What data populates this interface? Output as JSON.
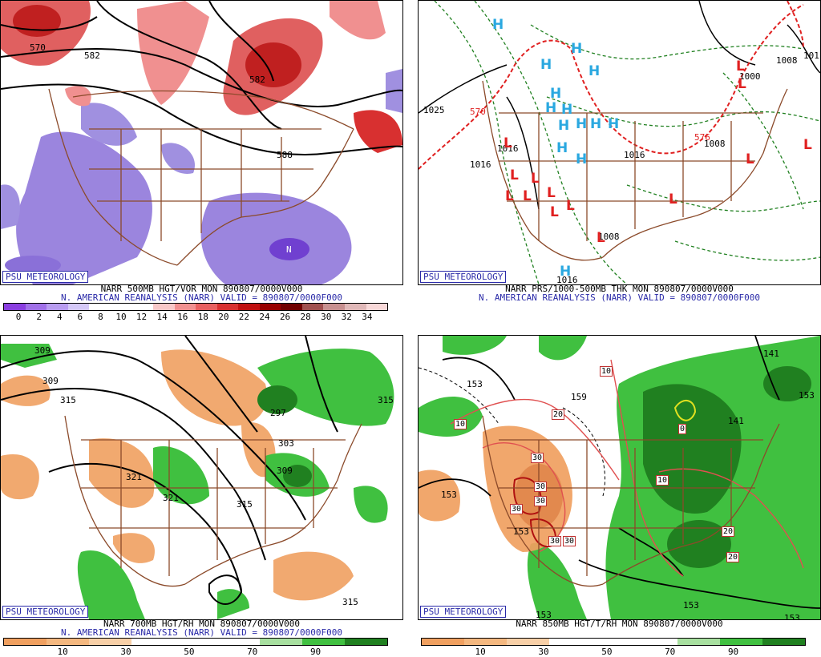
{
  "panels": [
    {
      "id": "vor500",
      "badge": "PSU METEOROLOGY",
      "title1": "NARR 500MB HGT/VOR MON 890807/0000V000",
      "title2": "N. AMERICAN REANALYSIS (NARR) VALID = 890807/0000F000",
      "colorbar": {
        "colors": [
          "#8a3ee0",
          "#a070e8",
          "#b89cf0",
          "#d4c8f8",
          "#ffffff",
          "#ffffff",
          "#ffffff",
          "#f8c8c8",
          "#f09090",
          "#e86060",
          "#d83030",
          "#c01010",
          "#980000",
          "#700000",
          "#a05050",
          "#c89090",
          "#e0b8b8",
          "#f8d8d8"
        ],
        "ticks": [
          "0",
          "2",
          "4",
          "6",
          "8",
          "10",
          "12",
          "14",
          "16",
          "18",
          "20",
          "22",
          "24",
          "26",
          "28",
          "30",
          "32",
          "34"
        ]
      },
      "contour_labels": [
        "570",
        "582",
        "582",
        "588"
      ]
    },
    {
      "id": "prs",
      "badge": "PSU METEOROLOGY",
      "title1": "NARR PRS/1000-500MB THK MON 890807/0000V000",
      "title2": "N. AMERICAN REANALYSIS (NARR) VALID = 890807/0000F000",
      "highs": [
        "H",
        "H",
        "H",
        "H",
        "H",
        "H",
        "H",
        "H",
        "H",
        "H",
        "H",
        "H",
        "H",
        "H"
      ],
      "lows": [
        "L",
        "L",
        "L",
        "L",
        "L",
        "L",
        "L",
        "L",
        "L",
        "L",
        "L",
        "L",
        "L",
        "L"
      ],
      "contour_labels": [
        "1025",
        "570",
        "1016",
        "1016",
        "1016",
        "1008",
        "1008",
        "1016",
        "1008",
        "1000",
        "1008",
        "1016",
        "101",
        "576"
      ]
    },
    {
      "id": "rh700",
      "badge": "PSU METEOROLOGY",
      "title1": "NARR 700MB HGT/RH MON 890807/0000V000",
      "title2": "N. AMERICAN REANALYSIS (NARR) VALID = 890807/0000F000",
      "colorbar": {
        "colors": [
          "#f0a060",
          "#f4b880",
          "#f8d0a8",
          "#ffffff",
          "#ffffff",
          "#ffffff",
          "#a8e0a0",
          "#40c040",
          "#208020"
        ],
        "ticks": [
          "10",
          "30",
          "50",
          "70",
          "90"
        ]
      },
      "contour_labels": [
        "309",
        "309",
        "315",
        "321",
        "321",
        "315",
        "297",
        "303",
        "309",
        "315",
        "315"
      ]
    },
    {
      "id": "t850",
      "badge": "PSU METEOROLOGY",
      "title1": "NARR 850MB HGT/T/RH MON 890807/0000V000",
      "colorbar": {
        "colors": [
          "#f0a060",
          "#f4b880",
          "#f8d0a8",
          "#ffffff",
          "#ffffff",
          "#ffffff",
          "#a8e0a0",
          "#40c040",
          "#208020"
        ],
        "ticks": [
          "10",
          "30",
          "50",
          "70",
          "90"
        ]
      },
      "contour_labels": [
        "153",
        "153",
        "153",
        "153",
        "153",
        "141",
        "141",
        "159",
        "153",
        "153"
      ],
      "temp_labels": [
        "10",
        "10",
        "20",
        "10",
        "30",
        "30",
        "30",
        "30",
        "30",
        "30",
        "20",
        "20",
        "0"
      ]
    }
  ],
  "colors": {
    "border_brown": "#8b4a2a",
    "title_blue": "#2a2aa8",
    "high_blue": "#2aa8e0",
    "low_red": "#e02020"
  }
}
